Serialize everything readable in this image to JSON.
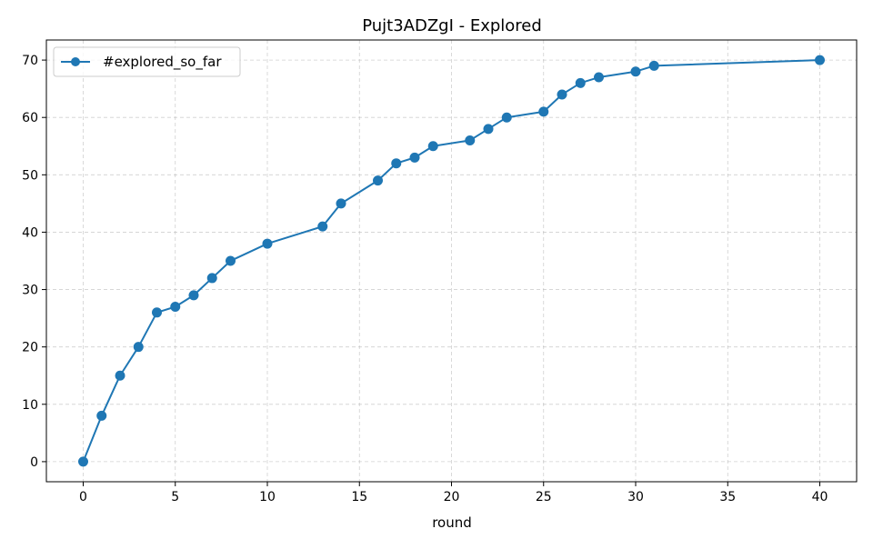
{
  "chart_data": {
    "type": "line",
    "title": "Pujt3ADZgI - Explored",
    "xlabel": "round",
    "ylabel": "",
    "xlim": [
      -2,
      42
    ],
    "ylim": [
      -3.5,
      73.5
    ],
    "xticks": [
      0,
      5,
      10,
      15,
      20,
      25,
      30,
      35,
      40
    ],
    "yticks": [
      0,
      10,
      20,
      30,
      40,
      50,
      60,
      70
    ],
    "grid": true,
    "legend_position": "top-left",
    "series": [
      {
        "name": "#explored_so_far",
        "color": "#1f77b4",
        "marker": "circle",
        "x": [
          0,
          1,
          2,
          3,
          4,
          5,
          6,
          7,
          8,
          10,
          13,
          14,
          16,
          17,
          18,
          19,
          21,
          22,
          23,
          25,
          26,
          27,
          28,
          30,
          31,
          40
        ],
        "y": [
          0,
          8,
          15,
          20,
          26,
          27,
          29,
          32,
          35,
          38,
          41,
          45,
          49,
          52,
          53,
          55,
          56,
          58,
          60,
          61,
          64,
          66,
          67,
          68,
          69,
          70
        ]
      }
    ]
  }
}
